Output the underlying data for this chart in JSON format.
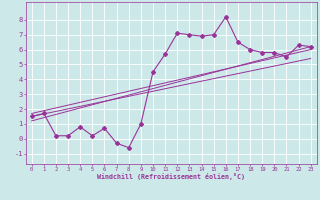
{
  "title": "",
  "xlabel": "Windchill (Refroidissement éolien,°C)",
  "ylabel": "",
  "bg_color": "#cce8e8",
  "line_color": "#993399",
  "xlim": [
    -0.5,
    23.5
  ],
  "ylim": [
    -1.7,
    9.2
  ],
  "xticks": [
    0,
    1,
    2,
    3,
    4,
    5,
    6,
    7,
    8,
    9,
    10,
    11,
    12,
    13,
    14,
    15,
    16,
    17,
    18,
    19,
    20,
    21,
    22,
    23
  ],
  "yticks": [
    -1,
    0,
    1,
    2,
    3,
    4,
    5,
    6,
    7,
    8
  ],
  "main_x": [
    0,
    1,
    2,
    3,
    4,
    5,
    6,
    7,
    8,
    9,
    10,
    11,
    12,
    13,
    14,
    15,
    16,
    17,
    18,
    19,
    20,
    21,
    22,
    23
  ],
  "main_y": [
    1.5,
    1.7,
    0.2,
    0.2,
    0.8,
    0.2,
    0.7,
    -0.3,
    -0.6,
    1.0,
    4.5,
    5.7,
    7.1,
    7.0,
    6.9,
    7.0,
    8.2,
    6.5,
    6.0,
    5.8,
    5.8,
    5.5,
    6.3,
    6.2
  ],
  "line1_x": [
    0,
    23
  ],
  "line1_y": [
    1.5,
    5.4
  ],
  "line2_x": [
    0,
    23
  ],
  "line2_y": [
    1.2,
    6.2
  ],
  "line3_x": [
    0,
    23
  ],
  "line3_y": [
    1.7,
    6.0
  ]
}
